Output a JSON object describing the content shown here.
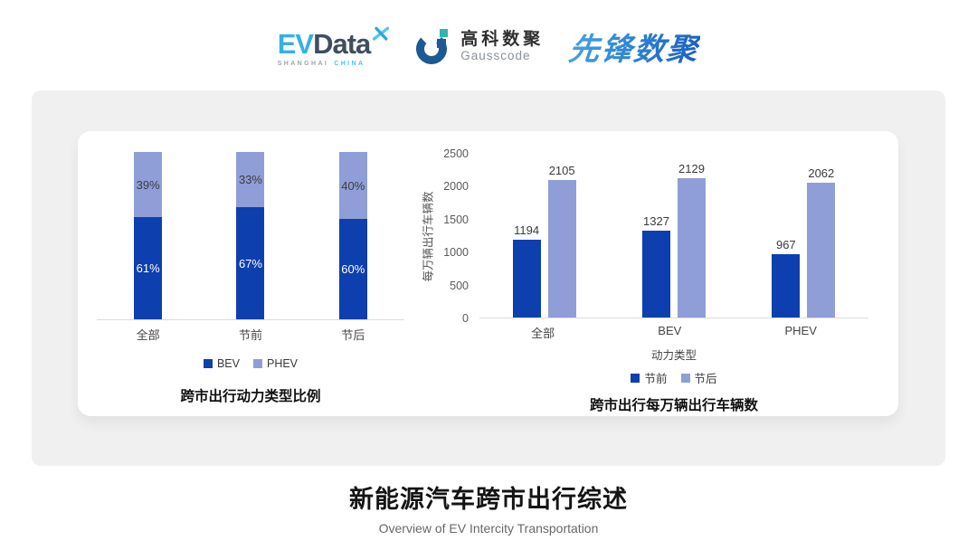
{
  "header": {
    "evdata": {
      "ev": "EV",
      "data": "Data",
      "sub1": "SHANGHAI",
      "sub2": "CHINA"
    },
    "gausscode": {
      "cn": "高科数聚",
      "en": "Gausscode"
    },
    "pioneer": {
      "text": "先锋数聚"
    }
  },
  "footer": {
    "title": "新能源汽车跨市出行综述",
    "subtitle": "Overview of EV Intercity Transportation"
  },
  "colors": {
    "primary_blue": "#0d3fae",
    "secondary_purple": "#8f9ed7",
    "axis_line": "#dcdcdc",
    "tick_text": "#595959"
  },
  "chart_data": [
    {
      "type": "bar",
      "variant": "stacked-percent",
      "title": "跨市出行动力类型比例",
      "categories": [
        "全部",
        "节前",
        "节后"
      ],
      "series": [
        {
          "name": "BEV",
          "values": [
            61,
            67,
            60
          ],
          "color": "#0d3fae",
          "label_color": "#ffffff"
        },
        {
          "name": "PHEV",
          "values": [
            39,
            33,
            40
          ],
          "color": "#8f9ed7",
          "label_color": "#3c3c3c"
        }
      ],
      "value_suffix": "%",
      "xlabel": "",
      "ylabel": "",
      "ylim": [
        0,
        100
      ],
      "grid": false,
      "legend_position": "bottom"
    },
    {
      "type": "bar",
      "variant": "grouped",
      "title": "跨市出行每万辆出行车辆数",
      "categories": [
        "全部",
        "BEV",
        "PHEV"
      ],
      "series": [
        {
          "name": "节前",
          "values": [
            1194,
            1327,
            967
          ],
          "color": "#0d3fae"
        },
        {
          "name": "节后",
          "values": [
            2105,
            2129,
            2062
          ],
          "color": "#8f9ed7"
        }
      ],
      "xlabel": "动力类型",
      "ylabel": "每万辆出行车辆数",
      "ylim": [
        0,
        2500
      ],
      "yticks": [
        0,
        500,
        1000,
        1500,
        2000,
        2500
      ],
      "grid": false,
      "legend_position": "bottom"
    }
  ]
}
